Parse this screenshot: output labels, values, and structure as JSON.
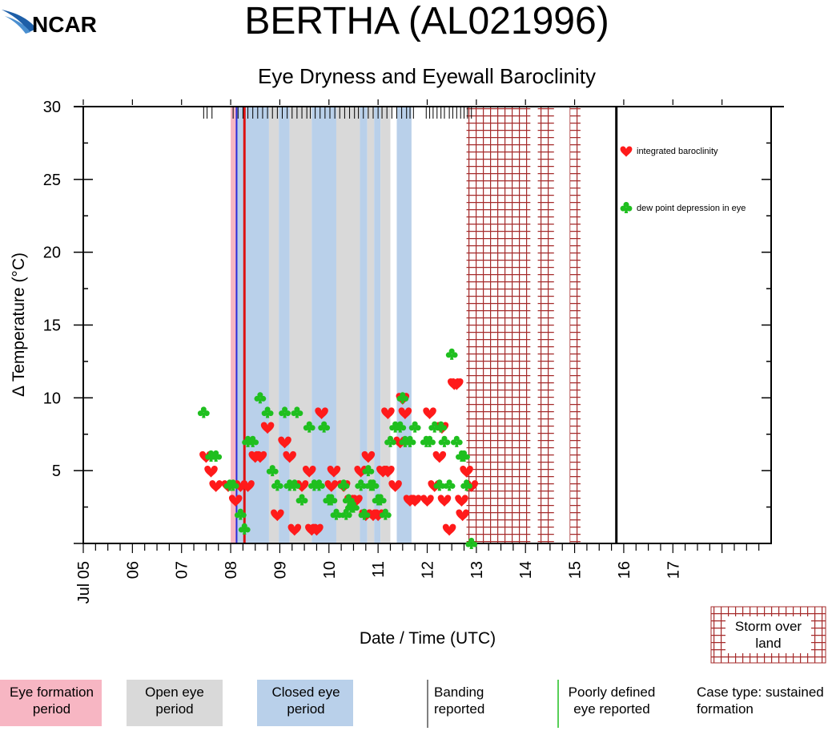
{
  "logo": {
    "text": "NCAR"
  },
  "chart_data": {
    "type": "scatter",
    "title": "BERTHA (AL021996)",
    "subtitle": "Eye Dryness and Eyewall Baroclinity",
    "xlabel": "Date / Time (UTC)",
    "ylabel": "Δ Temperature (°C)",
    "xlim": [
      5,
      19.0
    ],
    "ylim": [
      0,
      30
    ],
    "y_ticks": [
      5,
      10,
      15,
      20,
      25,
      30
    ],
    "y_tick_labels": [
      "5",
      "10",
      "15",
      "20",
      "25",
      "30"
    ],
    "x_ticks": [
      5,
      6,
      7,
      8,
      9,
      10,
      11,
      12,
      13,
      14,
      15,
      16,
      17
    ],
    "x_tick_labels": [
      "Jul 05",
      "06",
      "07",
      "08",
      "09",
      "10",
      "11",
      "12",
      "13",
      "14",
      "15",
      "16",
      "17"
    ],
    "colors": {
      "eye_formation": "#f7b6c3",
      "open_eye": "#d9d9d9",
      "closed_eye": "#b9d0ea",
      "land_hatch": "#a52a2a",
      "heart": "#ff1a1a",
      "club": "#1fbf1f",
      "eye_formation_line": "#2b2bd9",
      "formation_line": "#dd1111"
    },
    "periods": [
      {
        "type": "eye_formation",
        "start": 8.0,
        "end": 8.12
      },
      {
        "type": "closed_eye",
        "start": 8.12,
        "end": 8.78
      },
      {
        "type": "open_eye",
        "start": 8.78,
        "end": 8.98
      },
      {
        "type": "closed_eye",
        "start": 8.98,
        "end": 9.2
      },
      {
        "type": "open_eye",
        "start": 9.2,
        "end": 9.65
      },
      {
        "type": "closed_eye",
        "start": 9.65,
        "end": 10.15
      },
      {
        "type": "open_eye",
        "start": 10.15,
        "end": 10.63
      },
      {
        "type": "closed_eye",
        "start": 10.63,
        "end": 10.78
      },
      {
        "type": "open_eye",
        "start": 10.78,
        "end": 10.92
      },
      {
        "type": "closed_eye",
        "start": 10.92,
        "end": 11.05
      },
      {
        "type": "open_eye",
        "start": 11.05,
        "end": 11.25
      },
      {
        "type": "closed_eye",
        "start": 11.38,
        "end": 11.68
      },
      {
        "type": "open_eye",
        "start": 12.8,
        "end": 12.92
      }
    ],
    "land_periods": [
      [
        12.8,
        14.1
      ],
      [
        14.25,
        14.58
      ],
      [
        14.9,
        15.12
      ]
    ],
    "vertical_lines": [
      {
        "x": 8.12,
        "color": "#2b2bd9",
        "width": 2
      },
      {
        "x": 8.28,
        "color": "#dd1111",
        "width": 3
      },
      {
        "x": 15.85,
        "color": "#000000",
        "width": 3
      }
    ],
    "banding_ticks": [
      7.45,
      7.52,
      7.62,
      8.05,
      8.15,
      8.25,
      8.35,
      8.45,
      8.55,
      8.65,
      8.75,
      8.85,
      8.95,
      9.05,
      9.15,
      9.25,
      9.35,
      9.45,
      9.55,
      9.62,
      9.72,
      9.82,
      9.92,
      10.02,
      10.12,
      10.22,
      10.32,
      10.42,
      10.52,
      10.6,
      10.7,
      10.8,
      10.9,
      11.0,
      11.08,
      11.18,
      11.28,
      11.38,
      11.48,
      11.58,
      11.65,
      11.72,
      11.98,
      12.05,
      12.12,
      12.2,
      12.28,
      12.35,
      12.45,
      12.52,
      12.6,
      12.68,
      12.75,
      12.82,
      12.9
    ],
    "series": [
      {
        "name": "integrated baroclinity",
        "marker": "heart",
        "points": [
          [
            7.5,
            6
          ],
          [
            7.6,
            5
          ],
          [
            7.7,
            4
          ],
          [
            7.95,
            4
          ],
          [
            8.1,
            3
          ],
          [
            8.2,
            4
          ],
          [
            8.35,
            4
          ],
          [
            8.5,
            6
          ],
          [
            8.6,
            6
          ],
          [
            8.75,
            8
          ],
          [
            8.95,
            2
          ],
          [
            9.1,
            7
          ],
          [
            9.2,
            6
          ],
          [
            9.3,
            1
          ],
          [
            9.45,
            4
          ],
          [
            9.6,
            5
          ],
          [
            9.65,
            1
          ],
          [
            9.75,
            1
          ],
          [
            9.85,
            9
          ],
          [
            10.05,
            4
          ],
          [
            10.1,
            5
          ],
          [
            10.3,
            4
          ],
          [
            10.45,
            3
          ],
          [
            10.55,
            3
          ],
          [
            10.65,
            5
          ],
          [
            10.75,
            2
          ],
          [
            10.8,
            6
          ],
          [
            10.9,
            2
          ],
          [
            11.0,
            2
          ],
          [
            11.1,
            5
          ],
          [
            11.2,
            9
          ],
          [
            11.2,
            5
          ],
          [
            11.35,
            4
          ],
          [
            11.45,
            7
          ],
          [
            11.5,
            10
          ],
          [
            11.55,
            9
          ],
          [
            11.65,
            3
          ],
          [
            11.75,
            3
          ],
          [
            12.0,
            3
          ],
          [
            12.05,
            9
          ],
          [
            12.15,
            4
          ],
          [
            12.25,
            6
          ],
          [
            12.3,
            8
          ],
          [
            12.35,
            3
          ],
          [
            12.45,
            1
          ],
          [
            12.55,
            11
          ],
          [
            12.6,
            11
          ],
          [
            12.7,
            3
          ],
          [
            12.72,
            2
          ],
          [
            12.8,
            5
          ],
          [
            12.9,
            4
          ]
        ]
      },
      {
        "name": "dew point depression in eye",
        "marker": "club",
        "points": [
          [
            7.45,
            9
          ],
          [
            7.6,
            6
          ],
          [
            7.7,
            6
          ],
          [
            7.98,
            4
          ],
          [
            8.05,
            4
          ],
          [
            8.2,
            2
          ],
          [
            8.28,
            1
          ],
          [
            8.35,
            7
          ],
          [
            8.45,
            7
          ],
          [
            8.6,
            10
          ],
          [
            8.75,
            9
          ],
          [
            8.85,
            5
          ],
          [
            8.95,
            4
          ],
          [
            9.1,
            9
          ],
          [
            9.2,
            4
          ],
          [
            9.3,
            4
          ],
          [
            9.35,
            9
          ],
          [
            9.45,
            3
          ],
          [
            9.6,
            8
          ],
          [
            9.7,
            4
          ],
          [
            9.8,
            4
          ],
          [
            9.9,
            8
          ],
          [
            10.0,
            3
          ],
          [
            10.05,
            3
          ],
          [
            10.15,
            2
          ],
          [
            10.3,
            4
          ],
          [
            10.35,
            2
          ],
          [
            10.4,
            3
          ],
          [
            10.45,
            2.5
          ],
          [
            10.5,
            2.5
          ],
          [
            10.65,
            4
          ],
          [
            10.72,
            2
          ],
          [
            10.8,
            5
          ],
          [
            10.85,
            4
          ],
          [
            10.9,
            4
          ],
          [
            11.0,
            3
          ],
          [
            11.05,
            3
          ],
          [
            11.15,
            2
          ],
          [
            11.25,
            7
          ],
          [
            11.35,
            8
          ],
          [
            11.45,
            8
          ],
          [
            11.5,
            10
          ],
          [
            11.55,
            7
          ],
          [
            11.65,
            7
          ],
          [
            11.75,
            8
          ],
          [
            11.98,
            7
          ],
          [
            12.05,
            7
          ],
          [
            12.15,
            8
          ],
          [
            12.25,
            4
          ],
          [
            12.28,
            8
          ],
          [
            12.35,
            7
          ],
          [
            12.45,
            4
          ],
          [
            12.5,
            13
          ],
          [
            12.6,
            7
          ],
          [
            12.7,
            6
          ],
          [
            12.75,
            6
          ],
          [
            12.8,
            4
          ],
          [
            12.9,
            0
          ]
        ]
      }
    ],
    "legend": [
      {
        "marker": "heart",
        "label": "integrated baroclinity"
      },
      {
        "marker": "club",
        "label": "dew point depression in eye"
      }
    ],
    "land_legend": "Storm over land",
    "bottom_legend": {
      "eye_formation": "Eye formation period",
      "open_eye": "Open eye period",
      "closed_eye": "Closed eye period",
      "banding": "Banding reported",
      "poorly_defined": "Poorly defined eye reported",
      "case_type": "Case type: sustained formation"
    }
  }
}
